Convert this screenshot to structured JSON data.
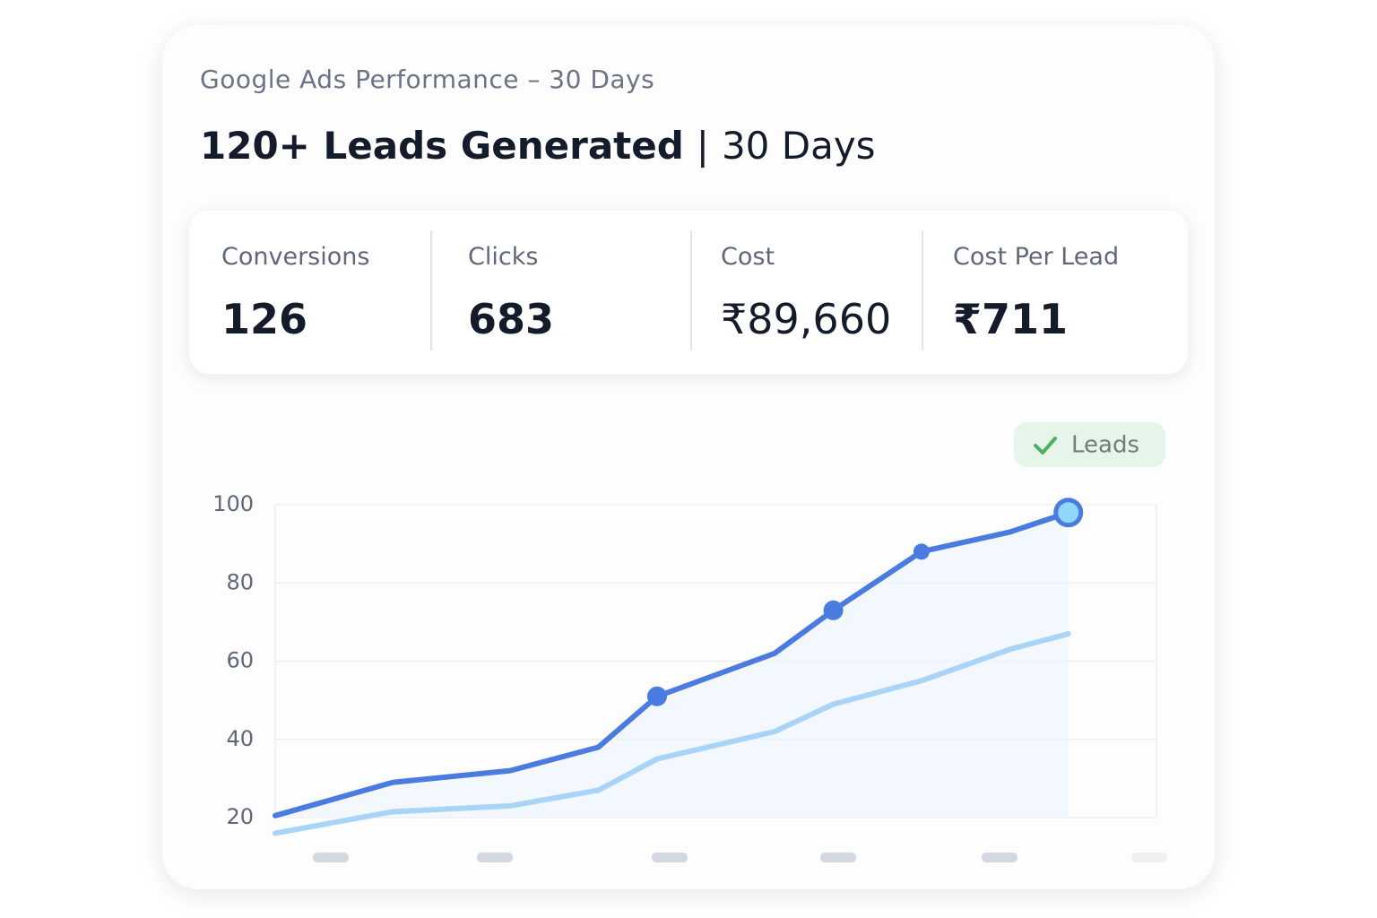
{
  "header": {
    "subtitle": "Google Ads Performance – 30 Days",
    "title": "120+ Leads Generated",
    "title_suffix": "30 Days"
  },
  "metrics": [
    {
      "label": "Conversions",
      "value": "126"
    },
    {
      "label": "Clicks",
      "value": "683"
    },
    {
      "label": "Cost",
      "value": "₹89,660"
    },
    {
      "label": "Cost Per Lead",
      "value": "₹711"
    }
  ],
  "chart_data": {
    "type": "line",
    "x": [
      0,
      4,
      8,
      11,
      13,
      17,
      19,
      22,
      25,
      27
    ],
    "xlim": [
      0,
      30
    ],
    "ylim": [
      20,
      100
    ],
    "yticks": [
      20,
      40,
      60,
      80,
      100
    ],
    "grid": true,
    "legend": "top-right",
    "series": [
      {
        "name": "Leads",
        "color": "#4a7be0",
        "values": [
          20.5,
          29,
          32,
          38,
          51,
          62,
          73,
          88,
          93,
          98
        ]
      },
      {
        "color": "#a8d4f7",
        "values": [
          16,
          21.5,
          23,
          27,
          35,
          42,
          49,
          55,
          63,
          67
        ]
      }
    ]
  }
}
